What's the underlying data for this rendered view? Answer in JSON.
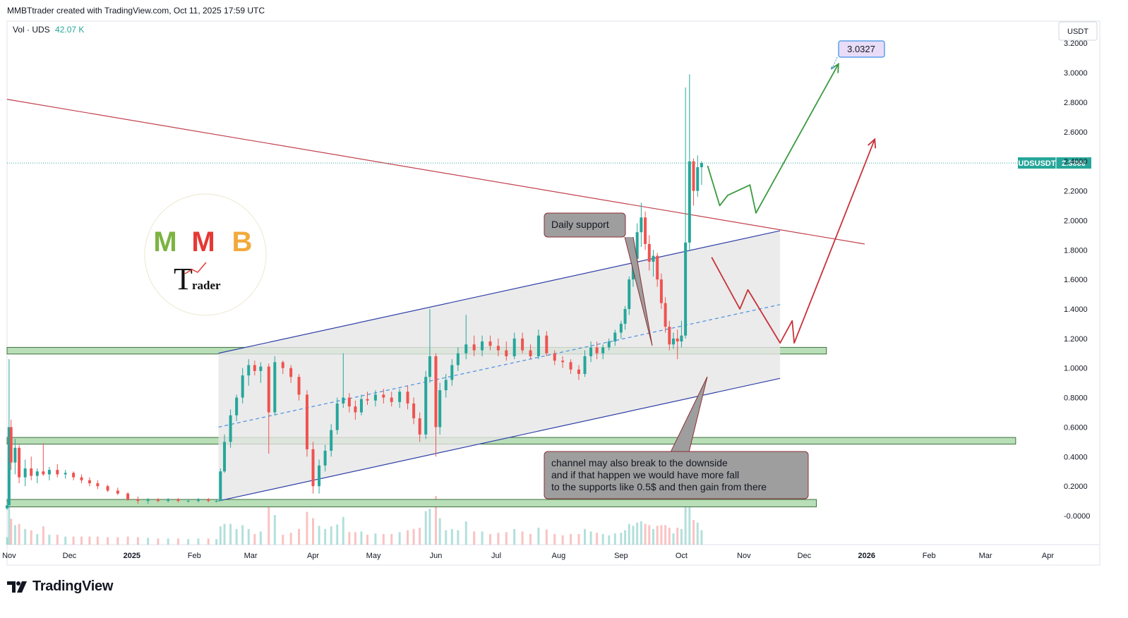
{
  "header": {
    "credit": "MMBTtrader created with TradingView.com, Oct 11, 2025 17:59 UTC"
  },
  "volume_legend": {
    "label": "Vol · UDS",
    "value": "42.07 K"
  },
  "currency_button": "USDT",
  "price_tag": {
    "symbol": "UDSUSDT",
    "value": "2.3886"
  },
  "target_label": "3.0327",
  "annotations": {
    "daily_support": "Daily support",
    "channel_note": [
      "channel may also break to the downside",
      "and if that happen we would have more fall",
      "to the supports like 0.5$ and then gain from there"
    ]
  },
  "logo": {
    "letters": [
      "M",
      "M",
      "B"
    ],
    "trader_word": "rader",
    "trader_initial": "T"
  },
  "footer": {
    "brand": "TradingView"
  },
  "colors": {
    "up": "#26a69a",
    "down": "#ef5350",
    "channel": "#2e3fa6",
    "trendline": "#c2414e",
    "support_zone": "#b8dfb8",
    "green_path": "#3a9a3f",
    "red_path": "#c8323a"
  },
  "chart_data": {
    "type": "candlestick",
    "symbol": "UDSUSDT",
    "ylim": [
      -0.1,
      3.25
    ],
    "y_ticks": [
      "3.2000",
      "3.0000",
      "2.8000",
      "2.6000",
      "2.4000",
      "2.2000",
      "2.0000",
      "1.8000",
      "1.6000",
      "1.4000",
      "1.2000",
      "1.0000",
      "0.8000",
      "0.6000",
      "0.4000",
      "0.2000",
      "-0.0000"
    ],
    "y_tick_values": [
      3.2,
      3.0,
      2.8,
      2.6,
      2.4,
      2.2,
      2.0,
      1.8,
      1.6,
      1.4,
      1.2,
      1.0,
      0.8,
      0.6,
      0.4,
      0.2,
      0.0
    ],
    "x_ticks": [
      {
        "label": "Nov",
        "date": "2024-11-01"
      },
      {
        "label": "Dec",
        "date": "2024-12-01"
      },
      {
        "label": "2025",
        "date": "2025-01-01",
        "bold": true
      },
      {
        "label": "Feb",
        "date": "2025-02-01"
      },
      {
        "label": "Mar",
        "date": "2025-03-01"
      },
      {
        "label": "Apr",
        "date": "2025-04-01"
      },
      {
        "label": "May",
        "date": "2025-05-01"
      },
      {
        "label": "Jun",
        "date": "2025-06-01"
      },
      {
        "label": "Jul",
        "date": "2025-07-01"
      },
      {
        "label": "Aug",
        "date": "2025-08-01"
      },
      {
        "label": "Sep",
        "date": "2025-09-01"
      },
      {
        "label": "Oct",
        "date": "2025-10-01"
      },
      {
        "label": "Nov",
        "date": "2025-11-01"
      },
      {
        "label": "Dec",
        "date": "2025-12-01"
      },
      {
        "label": "2026",
        "date": "2026-01-01",
        "bold": true
      },
      {
        "label": "Feb",
        "date": "2026-02-01"
      },
      {
        "label": "Mar",
        "date": "2026-03-01"
      },
      {
        "label": "Apr",
        "date": "2026-04-01"
      }
    ],
    "last_price": 2.3886,
    "support_zones": [
      {
        "y_low": 1.095,
        "y_high": 1.14,
        "x_start": "2024-10-31",
        "x_end": "2025-12-12"
      },
      {
        "y_low": 0.485,
        "y_high": 0.53,
        "x_start": "2024-10-31",
        "x_end": "2026-03-16"
      },
      {
        "y_low": 0.06,
        "y_high": 0.11,
        "x_start": "2024-10-31",
        "x_end": "2025-12-07"
      }
    ],
    "channel": {
      "upper": [
        {
          "x": "2025-02-13",
          "y": 1.1
        },
        {
          "x": "2025-11-19",
          "y": 1.93
        }
      ],
      "lower": [
        {
          "x": "2025-02-13",
          "y": 0.1
        },
        {
          "x": "2025-11-19",
          "y": 0.93
        }
      ],
      "mid": [
        {
          "x": "2025-02-13",
          "y": 0.6
        },
        {
          "x": "2025-11-19",
          "y": 1.43
        }
      ]
    },
    "trendline": [
      {
        "x": "2024-10-31",
        "y": 2.82
      },
      {
        "x": "2025-12-31",
        "y": 1.84
      }
    ],
    "green_path": [
      {
        "x": "2025-10-14",
        "y": 2.37
      },
      {
        "x": "2025-10-20",
        "y": 2.1
      },
      {
        "x": "2025-10-24",
        "y": 2.17
      },
      {
        "x": "2025-11-04",
        "y": 2.24
      },
      {
        "x": "2025-11-07",
        "y": 2.05
      },
      {
        "x": "2025-12-18",
        "y": 3.06
      }
    ],
    "red_path": [
      {
        "x": "2025-10-16",
        "y": 1.75
      },
      {
        "x": "2025-10-30",
        "y": 1.4
      },
      {
        "x": "2025-11-03",
        "y": 1.53
      },
      {
        "x": "2025-11-19",
        "y": 1.17
      },
      {
        "x": "2025-11-25",
        "y": 1.32
      },
      {
        "x": "2025-11-26",
        "y": 1.17
      },
      {
        "x": "2026-01-05",
        "y": 2.55
      }
    ],
    "candles": [
      {
        "date": "2024-10-31",
        "o": 0.05,
        "h": 0.09,
        "l": 0.04,
        "c": 0.07
      },
      {
        "date": "2024-11-01",
        "o": 0.07,
        "h": 1.06,
        "l": 0.07,
        "c": 0.6
      },
      {
        "date": "2024-11-02",
        "o": 0.6,
        "h": 0.65,
        "l": 0.31,
        "c": 0.36
      },
      {
        "date": "2024-11-04",
        "o": 0.36,
        "h": 0.52,
        "l": 0.28,
        "c": 0.46
      },
      {
        "date": "2024-11-06",
        "o": 0.46,
        "h": 0.48,
        "l": 0.22,
        "c": 0.26
      },
      {
        "date": "2024-11-09",
        "o": 0.26,
        "h": 0.38,
        "l": 0.2,
        "c": 0.32
      },
      {
        "date": "2024-11-12",
        "o": 0.32,
        "h": 0.4,
        "l": 0.24,
        "c": 0.27
      },
      {
        "date": "2024-11-15",
        "o": 0.27,
        "h": 0.32,
        "l": 0.22,
        "c": 0.3
      },
      {
        "date": "2024-11-18",
        "o": 0.3,
        "h": 0.49,
        "l": 0.27,
        "c": 0.28
      },
      {
        "date": "2024-11-21",
        "o": 0.28,
        "h": 0.33,
        "l": 0.24,
        "c": 0.31
      },
      {
        "date": "2024-11-25",
        "o": 0.31,
        "h": 0.35,
        "l": 0.26,
        "c": 0.28
      },
      {
        "date": "2024-11-29",
        "o": 0.28,
        "h": 0.31,
        "l": 0.25,
        "c": 0.29
      },
      {
        "date": "2024-12-03",
        "o": 0.29,
        "h": 0.3,
        "l": 0.24,
        "c": 0.26
      },
      {
        "date": "2024-12-07",
        "o": 0.26,
        "h": 0.28,
        "l": 0.22,
        "c": 0.24
      },
      {
        "date": "2024-12-11",
        "o": 0.24,
        "h": 0.26,
        "l": 0.2,
        "c": 0.22
      },
      {
        "date": "2024-12-15",
        "o": 0.22,
        "h": 0.24,
        "l": 0.18,
        "c": 0.2
      },
      {
        "date": "2024-12-20",
        "o": 0.2,
        "h": 0.21,
        "l": 0.16,
        "c": 0.17
      },
      {
        "date": "2024-12-25",
        "o": 0.17,
        "h": 0.19,
        "l": 0.14,
        "c": 0.15
      },
      {
        "date": "2024-12-30",
        "o": 0.15,
        "h": 0.16,
        "l": 0.1,
        "c": 0.11
      },
      {
        "date": "2025-01-04",
        "o": 0.11,
        "h": 0.13,
        "l": 0.08,
        "c": 0.1
      },
      {
        "date": "2025-01-09",
        "o": 0.1,
        "h": 0.12,
        "l": 0.08,
        "c": 0.11
      },
      {
        "date": "2025-01-14",
        "o": 0.11,
        "h": 0.12,
        "l": 0.09,
        "c": 0.1
      },
      {
        "date": "2025-01-19",
        "o": 0.1,
        "h": 0.12,
        "l": 0.09,
        "c": 0.11
      },
      {
        "date": "2025-01-24",
        "o": 0.11,
        "h": 0.12,
        "l": 0.09,
        "c": 0.1
      },
      {
        "date": "2025-01-29",
        "o": 0.1,
        "h": 0.11,
        "l": 0.09,
        "c": 0.1
      },
      {
        "date": "2025-02-03",
        "o": 0.1,
        "h": 0.12,
        "l": 0.09,
        "c": 0.11
      },
      {
        "date": "2025-02-08",
        "o": 0.11,
        "h": 0.12,
        "l": 0.09,
        "c": 0.1
      },
      {
        "date": "2025-02-12",
        "o": 0.1,
        "h": 0.11,
        "l": 0.09,
        "c": 0.1
      },
      {
        "date": "2025-02-14",
        "o": 0.1,
        "h": 0.32,
        "l": 0.1,
        "c": 0.3
      },
      {
        "date": "2025-02-16",
        "o": 0.3,
        "h": 0.55,
        "l": 0.29,
        "c": 0.5
      },
      {
        "date": "2025-02-19",
        "o": 0.5,
        "h": 0.72,
        "l": 0.46,
        "c": 0.68
      },
      {
        "date": "2025-02-22",
        "o": 0.68,
        "h": 0.82,
        "l": 0.64,
        "c": 0.8
      },
      {
        "date": "2025-02-25",
        "o": 0.8,
        "h": 1.0,
        "l": 0.76,
        "c": 0.95
      },
      {
        "date": "2025-02-28",
        "o": 0.95,
        "h": 1.06,
        "l": 0.88,
        "c": 1.02
      },
      {
        "date": "2025-03-03",
        "o": 1.02,
        "h": 1.05,
        "l": 0.95,
        "c": 0.98
      },
      {
        "date": "2025-03-06",
        "o": 0.98,
        "h": 1.04,
        "l": 0.9,
        "c": 1.01
      },
      {
        "date": "2025-03-10",
        "o": 1.01,
        "h": 1.03,
        "l": 0.42,
        "c": 0.7
      },
      {
        "date": "2025-03-13",
        "o": 0.7,
        "h": 1.08,
        "l": 0.68,
        "c": 1.04
      },
      {
        "date": "2025-03-17",
        "o": 1.04,
        "h": 1.05,
        "l": 0.96,
        "c": 1.0
      },
      {
        "date": "2025-03-21",
        "o": 1.0,
        "h": 1.02,
        "l": 0.9,
        "c": 0.94
      },
      {
        "date": "2025-03-25",
        "o": 0.94,
        "h": 0.96,
        "l": 0.78,
        "c": 0.82
      },
      {
        "date": "2025-03-29",
        "o": 0.82,
        "h": 0.85,
        "l": 0.4,
        "c": 0.45
      },
      {
        "date": "2025-04-01",
        "o": 0.45,
        "h": 0.5,
        "l": 0.15,
        "c": 0.2
      },
      {
        "date": "2025-04-04",
        "o": 0.2,
        "h": 0.38,
        "l": 0.15,
        "c": 0.34
      },
      {
        "date": "2025-04-07",
        "o": 0.34,
        "h": 0.48,
        "l": 0.3,
        "c": 0.44
      },
      {
        "date": "2025-04-10",
        "o": 0.44,
        "h": 0.62,
        "l": 0.4,
        "c": 0.58
      },
      {
        "date": "2025-04-13",
        "o": 0.58,
        "h": 0.8,
        "l": 0.55,
        "c": 0.76
      },
      {
        "date": "2025-04-16",
        "o": 0.76,
        "h": 1.1,
        "l": 0.73,
        "c": 0.8
      },
      {
        "date": "2025-04-19",
        "o": 0.8,
        "h": 0.83,
        "l": 0.7,
        "c": 0.74
      },
      {
        "date": "2025-04-22",
        "o": 0.74,
        "h": 0.78,
        "l": 0.65,
        "c": 0.7
      },
      {
        "date": "2025-04-25",
        "o": 0.7,
        "h": 0.82,
        "l": 0.68,
        "c": 0.79
      },
      {
        "date": "2025-04-28",
        "o": 0.79,
        "h": 0.84,
        "l": 0.75,
        "c": 0.78
      },
      {
        "date": "2025-05-02",
        "o": 0.78,
        "h": 0.85,
        "l": 0.74,
        "c": 0.82
      },
      {
        "date": "2025-05-06",
        "o": 0.82,
        "h": 0.86,
        "l": 0.76,
        "c": 0.8
      },
      {
        "date": "2025-05-10",
        "o": 0.8,
        "h": 0.84,
        "l": 0.74,
        "c": 0.77
      },
      {
        "date": "2025-05-14",
        "o": 0.77,
        "h": 0.86,
        "l": 0.73,
        "c": 0.84
      },
      {
        "date": "2025-05-18",
        "o": 0.84,
        "h": 0.88,
        "l": 0.72,
        "c": 0.76
      },
      {
        "date": "2025-05-21",
        "o": 0.76,
        "h": 0.8,
        "l": 0.62,
        "c": 0.66
      },
      {
        "date": "2025-05-24",
        "o": 0.66,
        "h": 0.7,
        "l": 0.5,
        "c": 0.55
      },
      {
        "date": "2025-05-27",
        "o": 0.55,
        "h": 0.98,
        "l": 0.52,
        "c": 0.94
      },
      {
        "date": "2025-05-29",
        "o": 0.94,
        "h": 1.4,
        "l": 0.9,
        "c": 1.08
      },
      {
        "date": "2025-06-01",
        "o": 1.08,
        "h": 1.1,
        "l": 0.4,
        "c": 0.6
      },
      {
        "date": "2025-06-03",
        "o": 0.6,
        "h": 0.9,
        "l": 0.55,
        "c": 0.85
      },
      {
        "date": "2025-06-06",
        "o": 0.85,
        "h": 0.96,
        "l": 0.8,
        "c": 0.92
      },
      {
        "date": "2025-06-09",
        "o": 0.92,
        "h": 1.06,
        "l": 0.88,
        "c": 1.02
      },
      {
        "date": "2025-06-12",
        "o": 1.02,
        "h": 1.14,
        "l": 0.98,
        "c": 1.1
      },
      {
        "date": "2025-06-16",
        "o": 1.1,
        "h": 1.36,
        "l": 1.06,
        "c": 1.16
      },
      {
        "date": "2025-06-20",
        "o": 1.16,
        "h": 1.22,
        "l": 1.08,
        "c": 1.12
      },
      {
        "date": "2025-06-24",
        "o": 1.12,
        "h": 1.22,
        "l": 1.08,
        "c": 1.18
      },
      {
        "date": "2025-06-28",
        "o": 1.18,
        "h": 1.22,
        "l": 1.12,
        "c": 1.15
      },
      {
        "date": "2025-07-02",
        "o": 1.15,
        "h": 1.2,
        "l": 1.08,
        "c": 1.12
      },
      {
        "date": "2025-07-06",
        "o": 1.12,
        "h": 1.18,
        "l": 1.05,
        "c": 1.08
      },
      {
        "date": "2025-07-10",
        "o": 1.08,
        "h": 1.24,
        "l": 1.06,
        "c": 1.2
      },
      {
        "date": "2025-07-14",
        "o": 1.2,
        "h": 1.24,
        "l": 1.1,
        "c": 1.12
      },
      {
        "date": "2025-07-18",
        "o": 1.12,
        "h": 1.16,
        "l": 1.06,
        "c": 1.08
      },
      {
        "date": "2025-07-22",
        "o": 1.08,
        "h": 1.26,
        "l": 1.06,
        "c": 1.22
      },
      {
        "date": "2025-07-26",
        "o": 1.22,
        "h": 1.25,
        "l": 1.08,
        "c": 1.1
      },
      {
        "date": "2025-07-30",
        "o": 1.1,
        "h": 1.12,
        "l": 1.02,
        "c": 1.05
      },
      {
        "date": "2025-08-03",
        "o": 1.05,
        "h": 1.08,
        "l": 1.0,
        "c": 1.04
      },
      {
        "date": "2025-08-07",
        "o": 1.04,
        "h": 1.06,
        "l": 0.96,
        "c": 0.99
      },
      {
        "date": "2025-08-11",
        "o": 0.99,
        "h": 1.02,
        "l": 0.92,
        "c": 0.96
      },
      {
        "date": "2025-08-14",
        "o": 0.96,
        "h": 1.12,
        "l": 0.94,
        "c": 1.08
      },
      {
        "date": "2025-08-17",
        "o": 1.08,
        "h": 1.18,
        "l": 1.04,
        "c": 1.14
      },
      {
        "date": "2025-08-20",
        "o": 1.14,
        "h": 1.18,
        "l": 1.06,
        "c": 1.1
      },
      {
        "date": "2025-08-23",
        "o": 1.1,
        "h": 1.16,
        "l": 1.06,
        "c": 1.14
      },
      {
        "date": "2025-08-26",
        "o": 1.14,
        "h": 1.2,
        "l": 1.12,
        "c": 1.18
      },
      {
        "date": "2025-08-29",
        "o": 1.18,
        "h": 1.26,
        "l": 1.15,
        "c": 1.24
      },
      {
        "date": "2025-09-01",
        "o": 1.24,
        "h": 1.32,
        "l": 1.2,
        "c": 1.3
      },
      {
        "date": "2025-09-03",
        "o": 1.3,
        "h": 1.42,
        "l": 1.26,
        "c": 1.4
      },
      {
        "date": "2025-09-05",
        "o": 1.4,
        "h": 1.62,
        "l": 1.36,
        "c": 1.6
      },
      {
        "date": "2025-09-07",
        "o": 1.6,
        "h": 1.78,
        "l": 1.55,
        "c": 1.74
      },
      {
        "date": "2025-09-09",
        "o": 1.74,
        "h": 1.98,
        "l": 1.7,
        "c": 1.92
      },
      {
        "date": "2025-09-11",
        "o": 1.92,
        "h": 2.12,
        "l": 1.82,
        "c": 2.02
      },
      {
        "date": "2025-09-13",
        "o": 2.02,
        "h": 2.06,
        "l": 1.8,
        "c": 1.84
      },
      {
        "date": "2025-09-15",
        "o": 1.84,
        "h": 1.9,
        "l": 1.66,
        "c": 1.72
      },
      {
        "date": "2025-09-17",
        "o": 1.72,
        "h": 1.8,
        "l": 1.62,
        "c": 1.76
      },
      {
        "date": "2025-09-19",
        "o": 1.76,
        "h": 1.78,
        "l": 1.55,
        "c": 1.6
      },
      {
        "date": "2025-09-21",
        "o": 1.6,
        "h": 1.64,
        "l": 1.4,
        "c": 1.44
      },
      {
        "date": "2025-09-23",
        "o": 1.44,
        "h": 1.48,
        "l": 1.24,
        "c": 1.28
      },
      {
        "date": "2025-09-25",
        "o": 1.28,
        "h": 1.32,
        "l": 1.12,
        "c": 1.16
      },
      {
        "date": "2025-09-27",
        "o": 1.16,
        "h": 1.24,
        "l": 1.13,
        "c": 1.2
      },
      {
        "date": "2025-09-29",
        "o": 1.2,
        "h": 1.26,
        "l": 1.06,
        "c": 1.18
      },
      {
        "date": "2025-10-01",
        "o": 1.18,
        "h": 1.32,
        "l": 1.14,
        "c": 1.22
      },
      {
        "date": "2025-10-03",
        "o": 1.22,
        "h": 2.9,
        "l": 1.2,
        "c": 1.85
      },
      {
        "date": "2025-10-05",
        "o": 1.85,
        "h": 2.99,
        "l": 1.8,
        "c": 2.4
      },
      {
        "date": "2025-10-07",
        "o": 2.4,
        "h": 2.42,
        "l": 2.1,
        "c": 2.2
      },
      {
        "date": "2025-10-09",
        "o": 2.2,
        "h": 2.44,
        "l": 2.16,
        "c": 2.36
      },
      {
        "date": "2025-10-11",
        "o": 2.36,
        "h": 2.4,
        "l": 2.24,
        "c": 2.3886
      }
    ]
  }
}
